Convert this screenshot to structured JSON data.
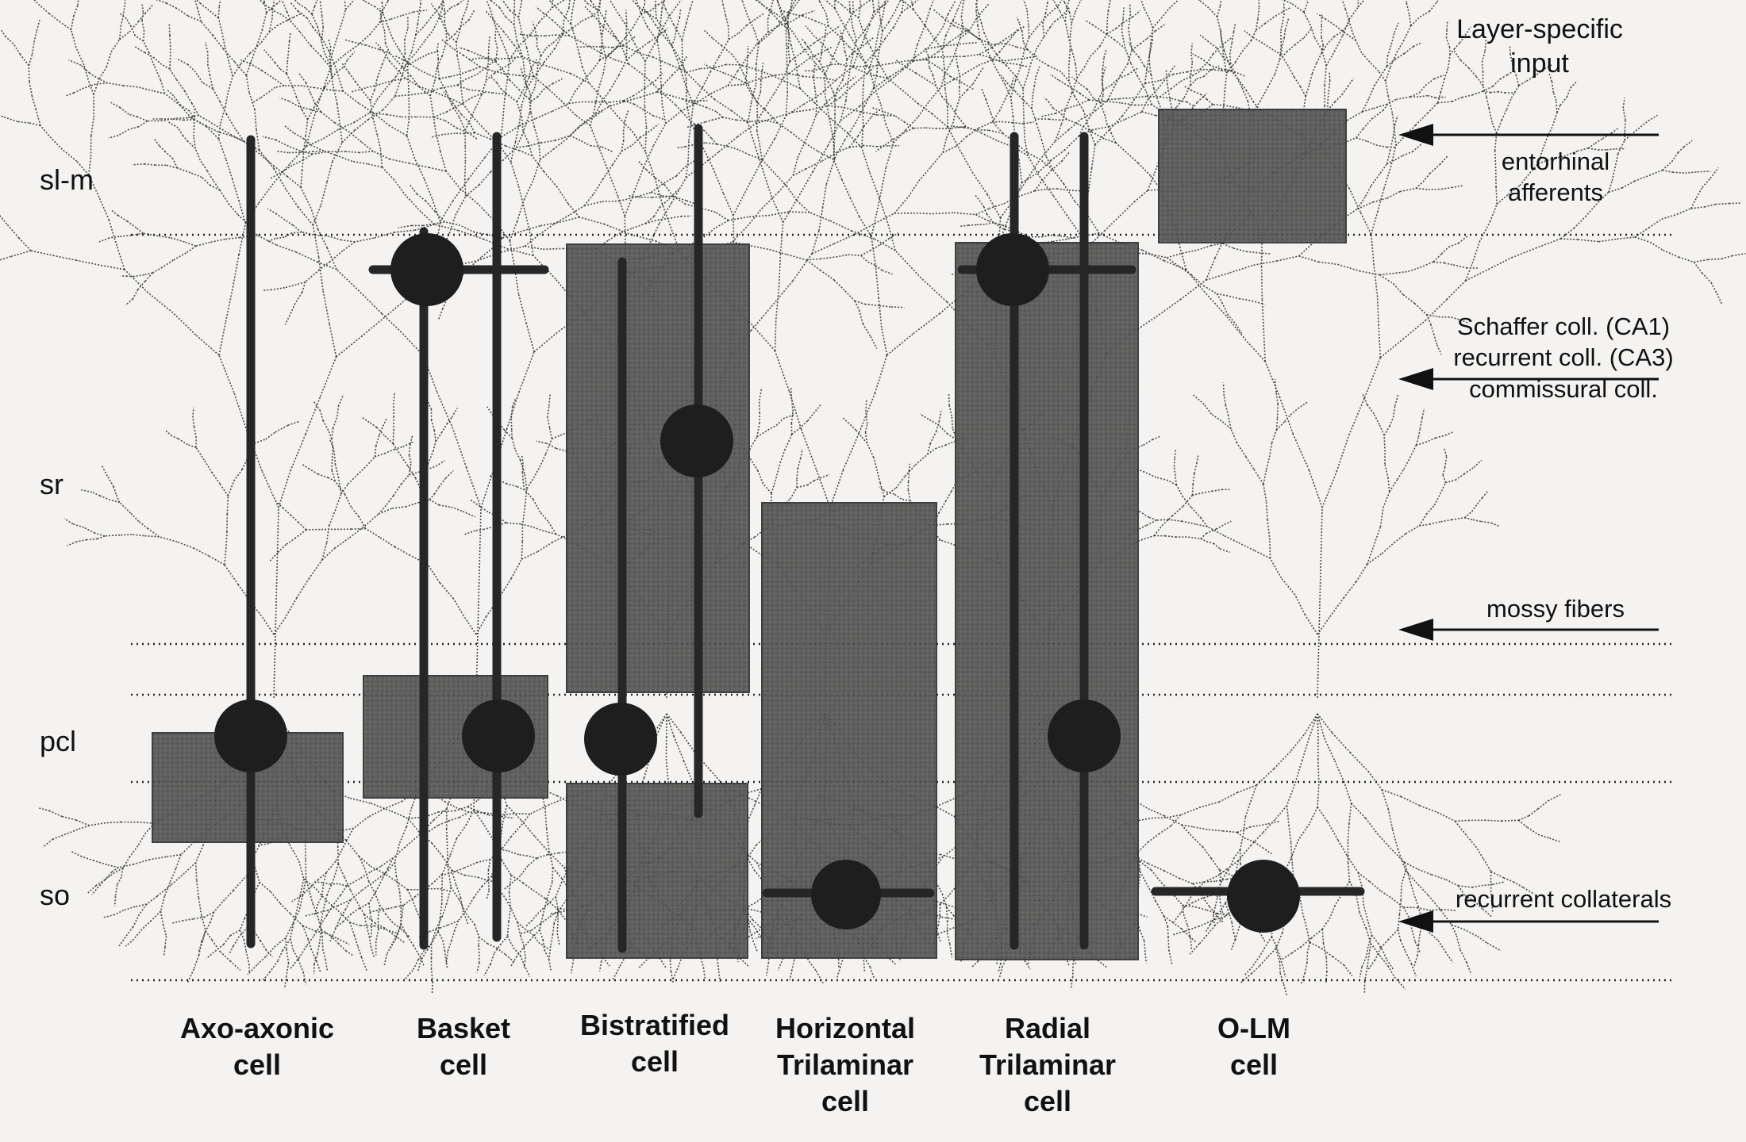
{
  "layers": [
    {
      "id": "sl-m",
      "label": "sl-m"
    },
    {
      "id": "sr",
      "label": "sr"
    },
    {
      "id": "pcl",
      "label": "pcl"
    },
    {
      "id": "so",
      "label": "so"
    }
  ],
  "inputs": {
    "header": [
      "Layer-specific",
      "input"
    ],
    "entorhinal": [
      "entorhinal",
      "afferents"
    ],
    "schaffer": [
      "Schaffer coll. (CA1)",
      "recurrent coll. (CA3)",
      "commissural coll."
    ],
    "mossy": [
      "mossy fibers"
    ],
    "recurrent": [
      "recurrent collaterals"
    ]
  },
  "cells": [
    {
      "id": "axo-axonic",
      "name": [
        "Axo-axonic",
        "cell"
      ]
    },
    {
      "id": "basket",
      "name": [
        "Basket",
        "cell"
      ]
    },
    {
      "id": "bistratified",
      "name": [
        "Bistratified",
        "cell"
      ]
    },
    {
      "id": "horizontal-trilaminar",
      "name": [
        "Horizontal",
        "Trilaminar",
        "cell"
      ]
    },
    {
      "id": "radial-trilaminar",
      "name": [
        "Radial",
        "Trilaminar",
        "cell"
      ]
    },
    {
      "id": "o-lm",
      "name": [
        "O-LM",
        "cell"
      ]
    }
  ],
  "colors": {
    "background": "#f4f3f1",
    "box_fill": "#4f4f4f",
    "axon": "#262626",
    "soma": "#1e1e1e",
    "dendrite": "#2b2b2b",
    "dotted_line": "#222222",
    "text": "#111111"
  }
}
